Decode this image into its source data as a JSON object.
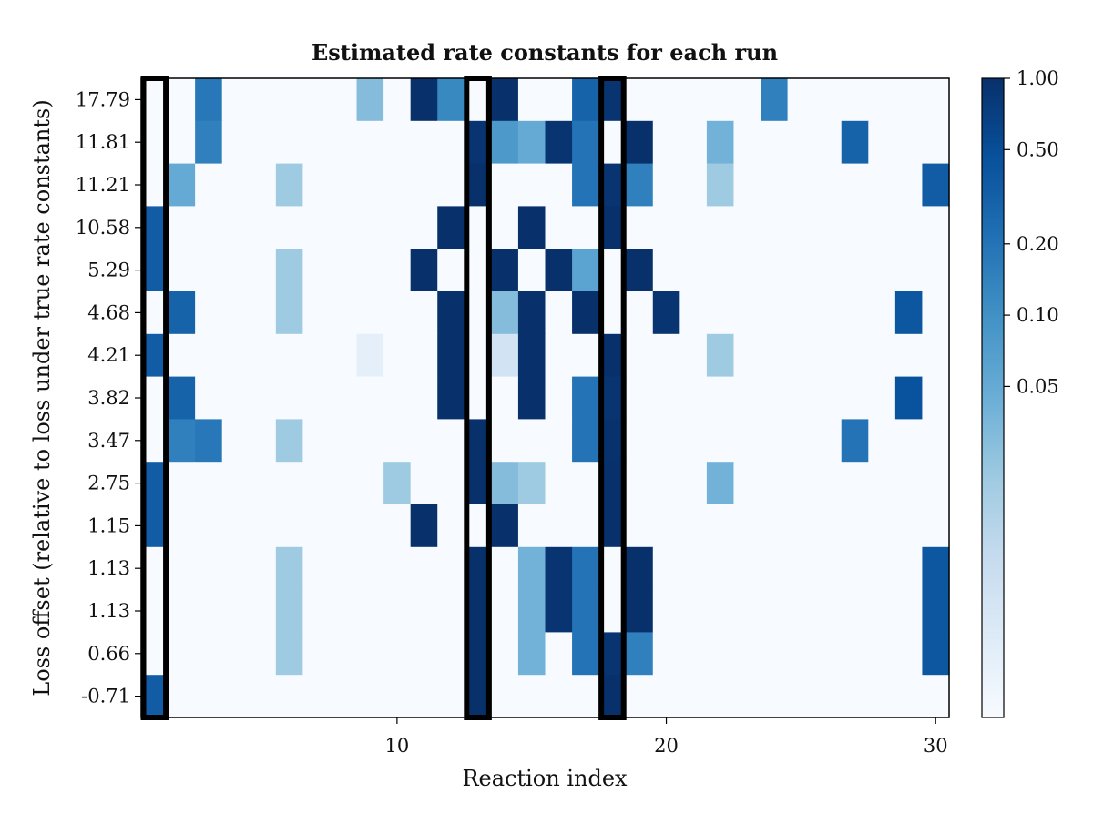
{
  "chart_data": {
    "type": "heatmap",
    "title": "Estimated rate constants for each run",
    "xlabel": "Reaction index",
    "ylabel": "Loss offset (relative to loss under true rate constants)",
    "xlim": [
      0.5,
      30.5
    ],
    "x_ticks": [
      10,
      20,
      30
    ],
    "rows": [
      "17.79",
      "11.81",
      "11.21",
      "10.58",
      "5.29",
      "4.68",
      "4.21",
      "3.82",
      "3.47",
      "2.75",
      "1.15",
      "1.13",
      "1.13",
      "0.66",
      "-0.71"
    ],
    "columns": [
      1,
      2,
      3,
      4,
      5,
      6,
      7,
      8,
      9,
      10,
      11,
      12,
      13,
      14,
      15,
      16,
      17,
      18,
      19,
      20,
      21,
      22,
      23,
      24,
      25,
      26,
      27,
      28,
      29,
      30
    ],
    "values": [
      [
        0,
        0,
        0.18,
        0,
        0,
        0,
        0,
        0,
        0.03,
        0,
        1.0,
        0.12,
        0,
        1.0,
        0,
        0,
        0.3,
        0.9,
        0,
        0,
        0,
        0,
        0,
        0.15,
        0,
        0,
        0,
        0,
        0,
        0
      ],
      [
        0,
        0,
        0.15,
        0,
        0,
        0,
        0,
        0,
        0,
        0,
        0,
        0,
        0.9,
        0.08,
        0.05,
        0.9,
        0.2,
        0,
        1.0,
        0,
        0,
        0.04,
        0,
        0,
        0,
        0,
        0.3,
        0,
        0,
        0
      ],
      [
        0,
        0.05,
        0,
        0,
        0,
        0.02,
        0,
        0,
        0,
        0,
        0,
        0,
        1.0,
        0,
        0,
        0,
        0.2,
        0.9,
        0.15,
        0,
        0,
        0.02,
        0,
        0,
        0,
        0,
        0,
        0,
        0,
        0.35
      ],
      [
        0.35,
        0,
        0,
        0,
        0,
        0,
        0,
        0,
        0,
        0,
        0,
        1.0,
        0,
        0,
        1.0,
        0,
        0,
        1.0,
        0,
        0,
        0,
        0,
        0,
        0,
        0,
        0,
        0,
        0,
        0,
        0
      ],
      [
        0.35,
        0,
        0,
        0,
        0,
        0.02,
        0,
        0,
        0,
        0,
        1.0,
        0,
        0,
        1.0,
        0,
        1.0,
        0.06,
        0,
        1.0,
        0,
        0,
        0,
        0,
        0,
        0,
        0,
        0,
        0,
        0,
        0
      ],
      [
        0,
        0.3,
        0,
        0,
        0,
        0.02,
        0,
        0,
        0,
        0,
        0,
        1.0,
        0,
        0.03,
        1.0,
        0,
        1.0,
        0,
        0,
        0.9,
        0,
        0,
        0,
        0,
        0,
        0,
        0,
        0,
        0.4,
        0
      ],
      [
        0.35,
        0,
        0,
        0,
        0,
        0,
        0,
        0,
        0.005,
        0,
        0,
        1.0,
        0,
        0.01,
        1.0,
        0,
        0,
        1.0,
        0,
        0,
        0,
        0.02,
        0,
        0,
        0,
        0,
        0,
        0,
        0,
        0
      ],
      [
        0,
        0.3,
        0,
        0,
        0,
        0,
        0,
        0,
        0,
        0,
        0,
        1.0,
        0,
        0,
        1.0,
        0,
        0.2,
        0.9,
        0,
        0,
        0,
        0,
        0,
        0,
        0,
        0,
        0,
        0,
        0.45,
        0
      ],
      [
        0,
        0.15,
        0.18,
        0,
        0,
        0.02,
        0,
        0,
        0,
        0,
        0,
        0,
        1.0,
        0,
        0,
        0,
        0.2,
        0.95,
        0,
        0,
        0,
        0,
        0,
        0,
        0,
        0,
        0.2,
        0,
        0,
        0
      ],
      [
        0.35,
        0,
        0,
        0,
        0,
        0,
        0,
        0,
        0,
        0.02,
        0,
        0,
        1.0,
        0.03,
        0.02,
        0,
        0,
        1.0,
        0,
        0,
        0,
        0.04,
        0,
        0,
        0,
        0,
        0,
        0,
        0,
        0
      ],
      [
        0.35,
        0,
        0,
        0,
        0,
        0,
        0,
        0,
        0,
        0,
        1.0,
        0,
        0,
        1.0,
        0,
        0,
        0,
        1.0,
        0,
        0,
        0,
        0,
        0,
        0,
        0,
        0,
        0,
        0,
        0,
        0
      ],
      [
        0,
        0,
        0,
        0,
        0,
        0.02,
        0,
        0,
        0,
        0,
        0,
        0,
        1.0,
        0,
        0.04,
        0.9,
        0.2,
        0,
        1.0,
        0,
        0,
        0,
        0,
        0,
        0,
        0,
        0,
        0,
        0,
        0.4
      ],
      [
        0,
        0,
        0,
        0,
        0,
        0.02,
        0,
        0,
        0,
        0,
        0,
        0,
        1.0,
        0,
        0.04,
        0.9,
        0.2,
        0,
        1.0,
        0,
        0,
        0,
        0,
        0,
        0,
        0,
        0,
        0,
        0,
        0.4
      ],
      [
        0,
        0,
        0,
        0,
        0,
        0.02,
        0,
        0,
        0,
        0,
        0,
        0,
        1.0,
        0,
        0.04,
        0,
        0.2,
        0.9,
        0.15,
        0,
        0,
        0,
        0,
        0,
        0,
        0,
        0,
        0,
        0,
        0.4
      ],
      [
        0.35,
        0,
        0,
        0,
        0,
        0,
        0,
        0,
        0,
        0,
        0,
        0,
        1.0,
        0,
        0,
        0,
        0,
        1.0,
        0,
        0,
        0,
        0,
        0,
        0,
        0,
        0,
        0,
        0,
        0,
        0
      ]
    ],
    "highlighted_columns": [
      1,
      13,
      18
    ],
    "colormap": "Blues",
    "colorbar": {
      "ticks": [
        1.0,
        0.5,
        0.2,
        0.1,
        0.05
      ],
      "tick_labels": [
        "1.00",
        "0.50",
        "0.20",
        "0.10",
        "0.05"
      ],
      "scale": "symlog"
    },
    "grid": false,
    "legend": "none"
  }
}
